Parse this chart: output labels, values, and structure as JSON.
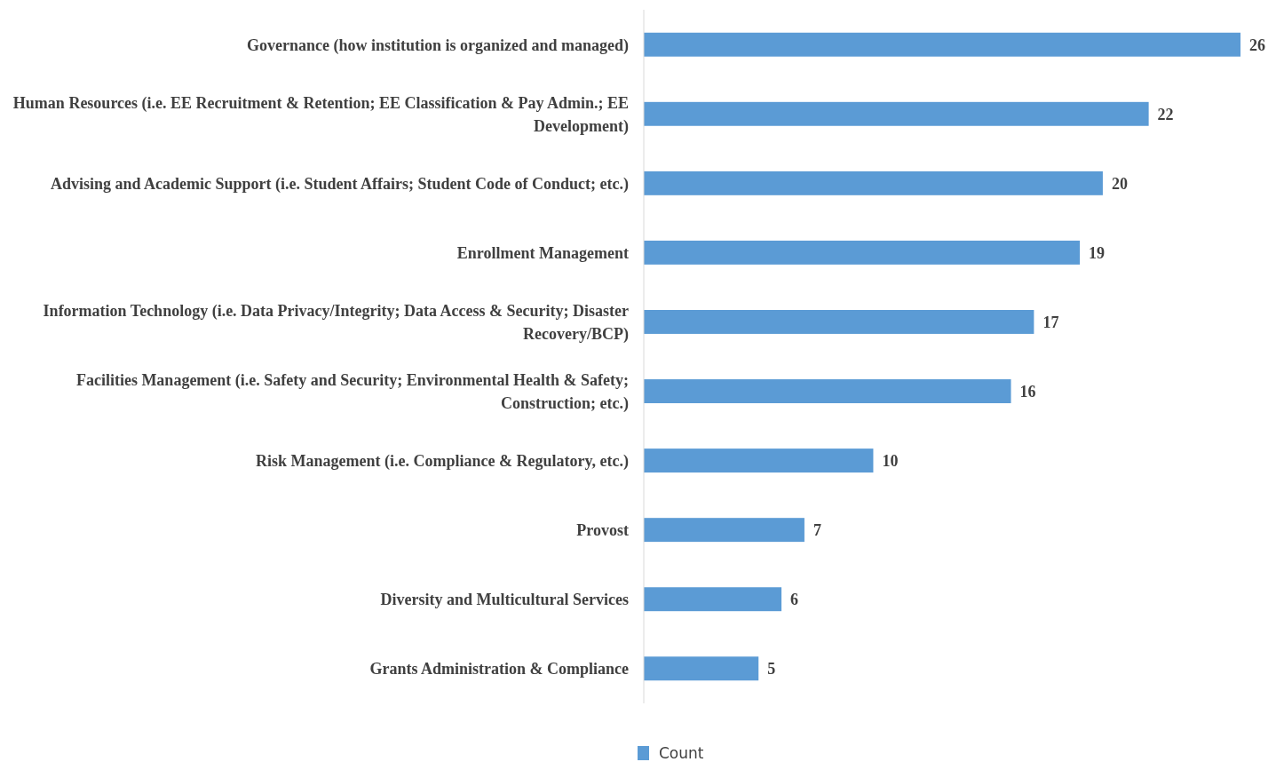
{
  "chart_data": {
    "type": "bar",
    "orientation": "horizontal",
    "categories": [
      "Governance (how institution is organized and managed)",
      "Human Resources (i.e. EE Recruitment & Retention; EE Classification & Pay Admin.; EE Development)",
      "Advising and Academic Support (i.e. Student Affairs; Student Code of Conduct; etc.)",
      "Enrollment Management",
      "Information Technology (i.e. Data Privacy/Integrity; Data Access & Security; Disaster Recovery/BCP)",
      "Facilities Management (i.e. Safety and Security; Environmental Health & Safety; Construction; etc.)",
      "Risk Management (i.e. Compliance & Regulatory, etc.)",
      "Provost",
      "Diversity and Multicultural Services",
      "Grants Administration & Compliance"
    ],
    "series": [
      {
        "name": "Count",
        "color": "#5b9bd5",
        "values": [
          26,
          22,
          20,
          19,
          17,
          16,
          10,
          7,
          6,
          5
        ]
      }
    ],
    "data_labels": true,
    "legend": "bottom"
  }
}
